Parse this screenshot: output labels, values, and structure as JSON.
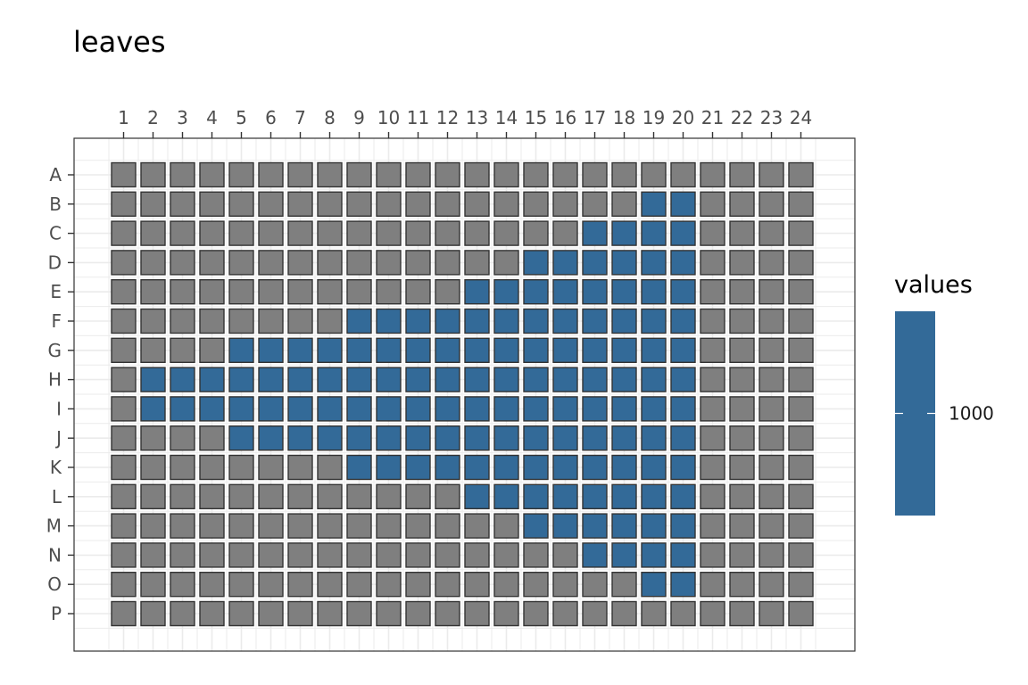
{
  "chart_data": {
    "type": "heatmap",
    "title": "leaves",
    "columns": [
      "1",
      "2",
      "3",
      "4",
      "5",
      "6",
      "7",
      "8",
      "9",
      "10",
      "11",
      "12",
      "13",
      "14",
      "15",
      "16",
      "17",
      "18",
      "19",
      "20",
      "21",
      "22",
      "23",
      "24"
    ],
    "rows": [
      "A",
      "B",
      "C",
      "D",
      "E",
      "F",
      "G",
      "H",
      "I",
      "J",
      "K",
      "L",
      "M",
      "N",
      "O",
      "P"
    ],
    "filled_wells": {
      "B": [
        19,
        20
      ],
      "C": [
        17,
        18,
        19,
        20
      ],
      "D": [
        15,
        16,
        17,
        18,
        19,
        20
      ],
      "E": [
        13,
        14,
        15,
        16,
        17,
        18,
        19,
        20
      ],
      "F": [
        9,
        10,
        11,
        12,
        13,
        14,
        15,
        16,
        17,
        18,
        19,
        20
      ],
      "G": [
        5,
        6,
        7,
        8,
        9,
        10,
        11,
        12,
        13,
        14,
        15,
        16,
        17,
        18,
        19,
        20
      ],
      "H": [
        2,
        3,
        4,
        5,
        6,
        7,
        8,
        9,
        10,
        11,
        12,
        13,
        14,
        15,
        16,
        17,
        18,
        19,
        20
      ],
      "I": [
        2,
        3,
        4,
        5,
        6,
        7,
        8,
        9,
        10,
        11,
        12,
        13,
        14,
        15,
        16,
        17,
        18,
        19,
        20
      ],
      "J": [
        5,
        6,
        7,
        8,
        9,
        10,
        11,
        12,
        13,
        14,
        15,
        16,
        17,
        18,
        19,
        20
      ],
      "K": [
        9,
        10,
        11,
        12,
        13,
        14,
        15,
        16,
        17,
        18,
        19,
        20
      ],
      "L": [
        13,
        14,
        15,
        16,
        17,
        18,
        19,
        20
      ],
      "M": [
        15,
        16,
        17,
        18,
        19,
        20
      ],
      "N": [
        17,
        18,
        19,
        20
      ],
      "O": [
        19,
        20
      ]
    },
    "fill_value": 1000,
    "colors": {
      "filled": "#336a98",
      "empty": "#7f7f7f",
      "border": "#333333",
      "panel_border": "#333333",
      "grid": "#ebebeb"
    },
    "legend": {
      "title": "values",
      "position": "right",
      "breaks": [
        1000
      ],
      "break_labels": [
        "1000"
      ]
    },
    "grid": true
  }
}
